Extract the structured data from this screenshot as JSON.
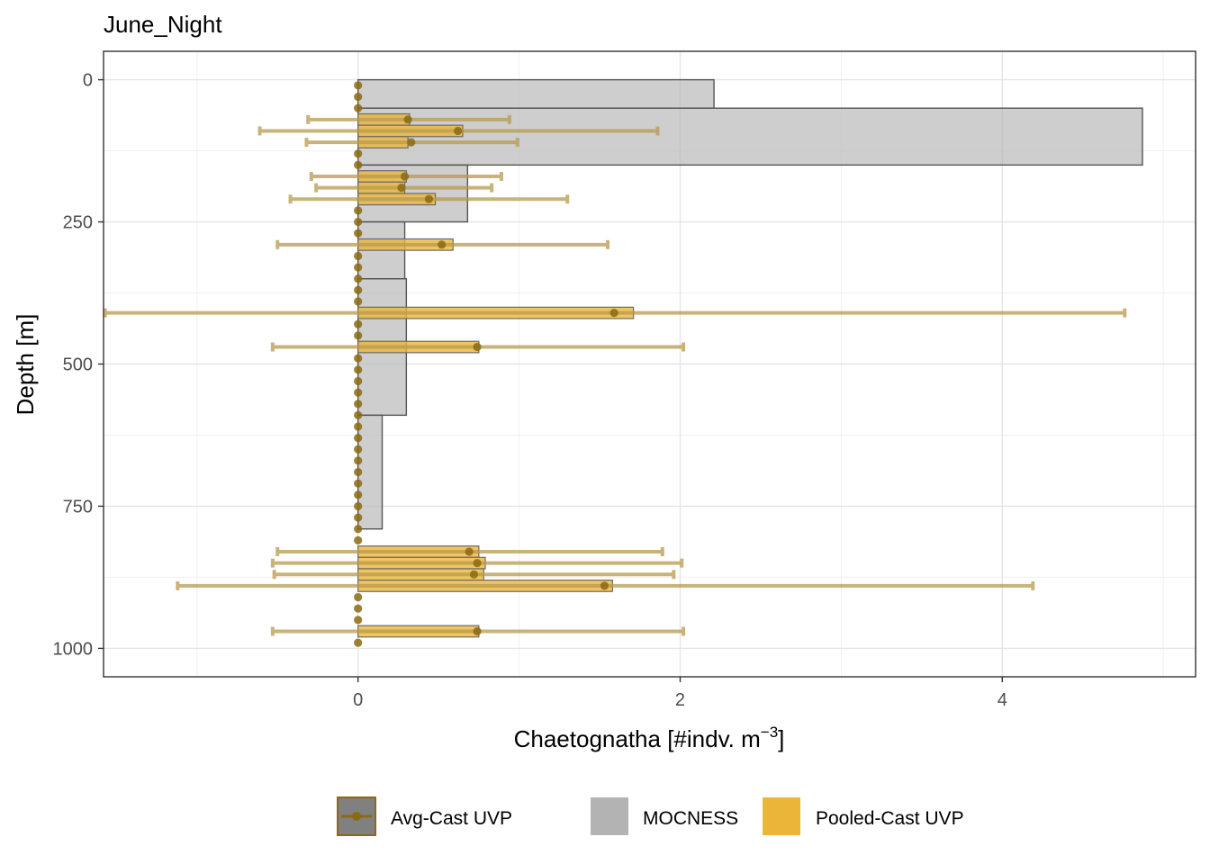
{
  "chart_data": {
    "type": "bar",
    "orientation": "horizontal",
    "title": "June_Night",
    "xlabel": "Chaetognatha [#indv. m",
    "xlabel_sup": "−3",
    "xlabel_suffix": "]",
    "ylabel": "Depth [m]",
    "xlim": [
      -1.58,
      5.2
    ],
    "ylim": [
      1050,
      -50
    ],
    "y_reversed": true,
    "x_ticks": [
      0,
      2,
      4
    ],
    "x_tick_labels": [
      "0",
      "2",
      "4"
    ],
    "y_ticks": [
      0,
      250,
      500,
      750,
      1000
    ],
    "y_tick_labels": [
      "0",
      "250",
      "500",
      "750",
      "1000"
    ],
    "grid": true,
    "legend_position": "bottom",
    "legend": [
      {
        "key": "avg",
        "label": "Avg-Cast UVP"
      },
      {
        "key": "mocness",
        "label": "MOCNESS"
      },
      {
        "key": "pooled",
        "label": "Pooled-Cast UVP"
      }
    ],
    "colors": {
      "mocness_fill": "#b3b3b3",
      "mocness_stroke": "#555555",
      "pooled_fill": "#ebb53a",
      "avg_point": "#8b6a12",
      "errorbar": "#b89a4e"
    },
    "mocness": [
      {
        "depth_top": 0,
        "depth_bottom": 50,
        "value": 2.21
      },
      {
        "depth_top": 50,
        "depth_bottom": 150,
        "value": 4.87
      },
      {
        "depth_top": 150,
        "depth_bottom": 250,
        "value": 0.68
      },
      {
        "depth_top": 250,
        "depth_bottom": 350,
        "value": 0.29
      },
      {
        "depth_top": 350,
        "depth_bottom": 590,
        "value": 0.3
      },
      {
        "depth_top": 590,
        "depth_bottom": 790,
        "value": 0.15
      }
    ],
    "pooled": [
      {
        "depth_top": 60,
        "depth_bottom": 80,
        "value": 0.32
      },
      {
        "depth_top": 80,
        "depth_bottom": 100,
        "value": 0.65
      },
      {
        "depth_top": 100,
        "depth_bottom": 120,
        "value": 0.31
      },
      {
        "depth_top": 160,
        "depth_bottom": 180,
        "value": 0.3
      },
      {
        "depth_top": 180,
        "depth_bottom": 200,
        "value": 0.29
      },
      {
        "depth_top": 200,
        "depth_bottom": 220,
        "value": 0.48
      },
      {
        "depth_top": 280,
        "depth_bottom": 300,
        "value": 0.59
      },
      {
        "depth_top": 400,
        "depth_bottom": 420,
        "value": 1.71
      },
      {
        "depth_top": 460,
        "depth_bottom": 480,
        "value": 0.75
      },
      {
        "depth_top": 820,
        "depth_bottom": 840,
        "value": 0.75
      },
      {
        "depth_top": 840,
        "depth_bottom": 860,
        "value": 0.79
      },
      {
        "depth_top": 860,
        "depth_bottom": 880,
        "value": 0.78
      },
      {
        "depth_top": 880,
        "depth_bottom": 900,
        "value": 1.58
      },
      {
        "depth_top": 960,
        "depth_bottom": 980,
        "value": 0.75
      }
    ],
    "avg_points": [
      {
        "depth": 10,
        "value": 0.0
      },
      {
        "depth": 30,
        "value": 0.0
      },
      {
        "depth": 50,
        "value": 0.0
      },
      {
        "depth": 70,
        "value": 0.31,
        "err_low": -0.31,
        "err_high": 0.94
      },
      {
        "depth": 90,
        "value": 0.62,
        "err_low": -0.61,
        "err_high": 1.86
      },
      {
        "depth": 110,
        "value": 0.33,
        "err_low": -0.32,
        "err_high": 0.99
      },
      {
        "depth": 130,
        "value": 0.0
      },
      {
        "depth": 150,
        "value": 0.0
      },
      {
        "depth": 170,
        "value": 0.29,
        "err_low": -0.29,
        "err_high": 0.89
      },
      {
        "depth": 190,
        "value": 0.27,
        "err_low": -0.26,
        "err_high": 0.83
      },
      {
        "depth": 210,
        "value": 0.44,
        "err_low": -0.42,
        "err_high": 1.3
      },
      {
        "depth": 230,
        "value": 0.0
      },
      {
        "depth": 250,
        "value": 0.0
      },
      {
        "depth": 270,
        "value": 0.0
      },
      {
        "depth": 290,
        "value": 0.52,
        "err_low": -0.5,
        "err_high": 1.55
      },
      {
        "depth": 310,
        "value": 0.0
      },
      {
        "depth": 330,
        "value": 0.0
      },
      {
        "depth": 350,
        "value": 0.0
      },
      {
        "depth": 370,
        "value": 0.0
      },
      {
        "depth": 390,
        "value": 0.0
      },
      {
        "depth": 410,
        "value": 1.59,
        "err_low": -1.57,
        "err_high": 4.76
      },
      {
        "depth": 430,
        "value": 0.0
      },
      {
        "depth": 450,
        "value": 0.0
      },
      {
        "depth": 470,
        "value": 0.74,
        "err_low": -0.53,
        "err_high": 2.02
      },
      {
        "depth": 490,
        "value": 0.0
      },
      {
        "depth": 510,
        "value": 0.0
      },
      {
        "depth": 530,
        "value": 0.0
      },
      {
        "depth": 550,
        "value": 0.0
      },
      {
        "depth": 570,
        "value": 0.0
      },
      {
        "depth": 590,
        "value": 0.0
      },
      {
        "depth": 610,
        "value": 0.0
      },
      {
        "depth": 630,
        "value": 0.0
      },
      {
        "depth": 650,
        "value": 0.0
      },
      {
        "depth": 670,
        "value": 0.0
      },
      {
        "depth": 690,
        "value": 0.0
      },
      {
        "depth": 710,
        "value": 0.0
      },
      {
        "depth": 730,
        "value": 0.0
      },
      {
        "depth": 750,
        "value": 0.0
      },
      {
        "depth": 770,
        "value": 0.0
      },
      {
        "depth": 790,
        "value": 0.0
      },
      {
        "depth": 810,
        "value": 0.0
      },
      {
        "depth": 830,
        "value": 0.69,
        "err_low": -0.5,
        "err_high": 1.89
      },
      {
        "depth": 850,
        "value": 0.74,
        "err_low": -0.53,
        "err_high": 2.01
      },
      {
        "depth": 870,
        "value": 0.72,
        "err_low": -0.52,
        "err_high": 1.96
      },
      {
        "depth": 890,
        "value": 1.53,
        "err_low": -1.12,
        "err_high": 4.19
      },
      {
        "depth": 910,
        "value": 0.0
      },
      {
        "depth": 930,
        "value": 0.0
      },
      {
        "depth": 950,
        "value": 0.0
      },
      {
        "depth": 970,
        "value": 0.74,
        "err_low": -0.53,
        "err_high": 2.02
      },
      {
        "depth": 990,
        "value": 0.0
      }
    ]
  }
}
